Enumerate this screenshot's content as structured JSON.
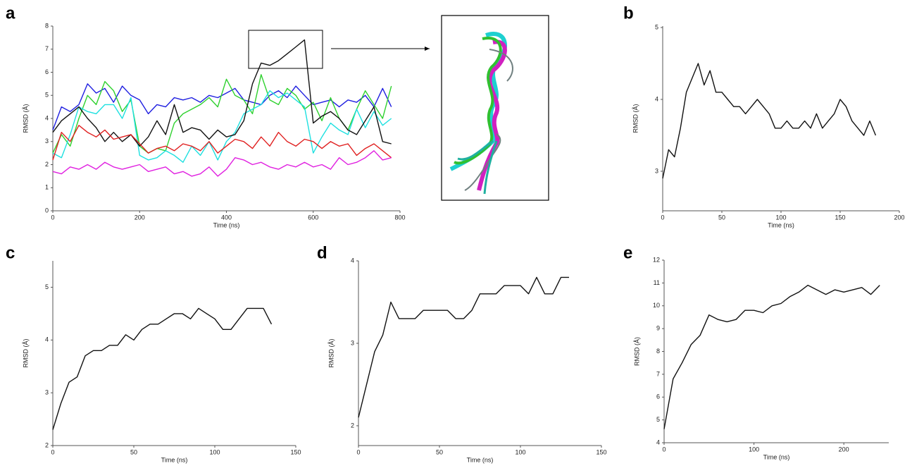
{
  "chart_data": [
    {
      "type": "line",
      "label": "a",
      "x_label": "Time (ns)",
      "y_label": "RMSD (Å)",
      "x": [
        0,
        20,
        40,
        60,
        80,
        100,
        120,
        140,
        160,
        180,
        200,
        220,
        240,
        260,
        280,
        300,
        320,
        340,
        360,
        380,
        400,
        420,
        440,
        460,
        480,
        500,
        520,
        540,
        560,
        580,
        600,
        620,
        640,
        660,
        680,
        700,
        720,
        740,
        760,
        780
      ],
      "series": [
        {
          "color": "#1f1fe0",
          "values": [
            3.5,
            4.5,
            4.3,
            4.6,
            5.5,
            5.1,
            5.3,
            4.7,
            5.4,
            5.0,
            4.8,
            4.2,
            4.6,
            4.5,
            4.9,
            4.8,
            4.9,
            4.7,
            5.0,
            4.9,
            5.1,
            5.3,
            4.8,
            4.7,
            4.6,
            5.0,
            5.2,
            4.9,
            5.4,
            5.0,
            4.6,
            4.7,
            4.8,
            4.5,
            4.8,
            4.7,
            5.0,
            4.5,
            5.3,
            4.5
          ]
        },
        {
          "color": "#2ed12e",
          "values": [
            2.5,
            3.3,
            2.8,
            4.0,
            5.0,
            4.6,
            5.6,
            5.2,
            4.3,
            4.8,
            2.8,
            2.5,
            2.7,
            2.6,
            3.8,
            4.2,
            4.4,
            4.6,
            4.9,
            4.5,
            5.7,
            5.0,
            4.8,
            4.2,
            5.9,
            4.8,
            4.6,
            5.3,
            5.0,
            4.4,
            4.7,
            3.9,
            4.9,
            4.0,
            3.5,
            4.4,
            5.2,
            4.6,
            4.0,
            5.4
          ]
        },
        {
          "color": "#1ee0e0",
          "values": [
            2.5,
            2.3,
            3.3,
            4.5,
            4.3,
            4.2,
            4.6,
            4.6,
            4.0,
            4.9,
            2.4,
            2.2,
            2.3,
            2.6,
            2.4,
            2.1,
            2.8,
            2.4,
            3.0,
            2.2,
            3.0,
            3.4,
            4.2,
            4.4,
            4.6,
            5.2,
            4.9,
            5.1,
            4.8,
            4.5,
            2.5,
            3.2,
            3.8,
            3.5,
            3.3,
            4.4,
            3.6,
            4.3,
            3.7,
            4.0
          ]
        },
        {
          "color": "#111111",
          "values": [
            3.4,
            3.9,
            4.2,
            4.5,
            4.0,
            3.6,
            3.0,
            3.4,
            3.0,
            3.3,
            2.8,
            3.2,
            3.9,
            3.3,
            4.6,
            3.4,
            3.6,
            3.5,
            3.1,
            3.5,
            3.2,
            3.3,
            3.9,
            5.5,
            6.4,
            6.3,
            6.5,
            6.8,
            7.1,
            7.4,
            3.8,
            4.1,
            4.3,
            4.0,
            3.5,
            3.3,
            3.9,
            4.5,
            3.0,
            2.9
          ]
        },
        {
          "color": "#e02020",
          "values": [
            2.2,
            3.4,
            3.0,
            3.7,
            3.4,
            3.2,
            3.5,
            3.1,
            3.2,
            3.3,
            2.9,
            2.5,
            2.7,
            2.8,
            2.6,
            2.9,
            2.8,
            2.6,
            3.0,
            2.5,
            2.8,
            3.1,
            3.0,
            2.7,
            3.2,
            2.8,
            3.4,
            3.0,
            2.8,
            3.1,
            3.0,
            2.7,
            3.0,
            2.8,
            2.9,
            2.4,
            2.7,
            2.9,
            2.6,
            2.3
          ]
        },
        {
          "color": "#e020e0",
          "values": [
            1.7,
            1.6,
            1.9,
            1.8,
            2.0,
            1.8,
            2.1,
            1.9,
            1.8,
            1.9,
            2.0,
            1.7,
            1.8,
            1.9,
            1.6,
            1.7,
            1.5,
            1.6,
            1.9,
            1.5,
            1.8,
            2.3,
            2.2,
            2.0,
            2.1,
            1.9,
            1.8,
            2.0,
            1.9,
            2.1,
            1.9,
            2.0,
            1.8,
            2.3,
            2.0,
            2.1,
            2.3,
            2.6,
            2.2,
            2.3
          ]
        }
      ],
      "xlim": [
        0,
        800
      ],
      "xticks": [
        0,
        200,
        400,
        600,
        800
      ],
      "ylim": [
        0,
        8
      ],
      "yticks": [
        0,
        1,
        2,
        3,
        4,
        5,
        6,
        7,
        8
      ]
    },
    {
      "type": "line",
      "label": "b",
      "x_label": "Time (ns)",
      "y_label": "RMSD (Å)",
      "color": "#111111",
      "x": [
        0,
        5,
        10,
        15,
        20,
        25,
        30,
        35,
        40,
        45,
        50,
        55,
        60,
        65,
        70,
        75,
        80,
        85,
        90,
        95,
        100,
        105,
        110,
        115,
        120,
        125,
        130,
        135,
        140,
        145,
        150,
        155,
        160,
        165,
        170,
        175,
        180
      ],
      "values": [
        2.9,
        3.3,
        3.2,
        3.6,
        4.1,
        4.3,
        4.5,
        4.2,
        4.4,
        4.1,
        4.1,
        4.0,
        3.9,
        3.9,
        3.8,
        3.9,
        4.0,
        3.9,
        3.8,
        3.6,
        3.6,
        3.7,
        3.6,
        3.6,
        3.7,
        3.6,
        3.8,
        3.6,
        3.7,
        3.8,
        4.0,
        3.9,
        3.7,
        3.6,
        3.5,
        3.7,
        3.5
      ],
      "xlim": [
        0,
        200
      ],
      "xticks": [
        0,
        50,
        100,
        150,
        200
      ],
      "ylim": [
        2.45,
        5.02
      ],
      "yticks": [
        3,
        4,
        5
      ]
    },
    {
      "type": "line",
      "label": "c",
      "x_label": "Time (ns)",
      "y_label": "RMSD (Å)",
      "color": "#111111",
      "x": [
        0,
        5,
        10,
        15,
        20,
        25,
        30,
        35,
        40,
        45,
        50,
        55,
        60,
        65,
        70,
        75,
        80,
        85,
        90,
        95,
        100,
        105,
        110,
        115,
        120,
        125,
        130,
        135
      ],
      "values": [
        2.3,
        2.8,
        3.2,
        3.3,
        3.7,
        3.8,
        3.8,
        3.9,
        3.9,
        4.1,
        4.0,
        4.2,
        4.3,
        4.3,
        4.4,
        4.5,
        4.5,
        4.4,
        4.6,
        4.5,
        4.4,
        4.2,
        4.2,
        4.4,
        4.6,
        4.6,
        4.6,
        4.3
      ],
      "xlim": [
        0,
        150
      ],
      "xticks": [
        0,
        50,
        100,
        150
      ],
      "ylim": [
        2,
        5.5
      ],
      "yticks": [
        2,
        3,
        4,
        5
      ]
    },
    {
      "type": "line",
      "label": "d",
      "x_label": "Time (ns)",
      "y_label": "RMSD (Å)",
      "color": "#111111",
      "x": [
        0,
        5,
        10,
        15,
        20,
        25,
        30,
        35,
        40,
        45,
        50,
        55,
        60,
        65,
        70,
        75,
        80,
        85,
        90,
        95,
        100,
        105,
        110,
        115,
        120,
        125,
        130
      ],
      "values": [
        2.1,
        2.5,
        2.9,
        3.1,
        3.5,
        3.3,
        3.3,
        3.3,
        3.4,
        3.4,
        3.4,
        3.4,
        3.3,
        3.3,
        3.4,
        3.6,
        3.6,
        3.6,
        3.7,
        3.7,
        3.7,
        3.6,
        3.8,
        3.6,
        3.6,
        3.8,
        3.8
      ],
      "xlim": [
        0,
        150
      ],
      "xticks": [
        0,
        50,
        100,
        150
      ],
      "ylim": [
        1.76,
        4
      ],
      "yticks": [
        2,
        3,
        4
      ]
    },
    {
      "type": "line",
      "label": "e",
      "x_label": "Time (ns)",
      "y_label": "RMSD (Å)",
      "color": "#111111",
      "x": [
        0,
        10,
        20,
        30,
        40,
        50,
        60,
        70,
        80,
        90,
        100,
        110,
        120,
        130,
        140,
        150,
        160,
        170,
        180,
        190,
        200,
        210,
        220,
        230,
        240
      ],
      "values": [
        4.6,
        6.8,
        7.5,
        8.3,
        8.7,
        9.6,
        9.4,
        9.3,
        9.4,
        9.8,
        9.8,
        9.7,
        10.0,
        10.1,
        10.4,
        10.6,
        10.9,
        10.7,
        10.5,
        10.7,
        10.6,
        10.7,
        10.8,
        10.5,
        10.9
      ],
      "xlim": [
        0,
        250
      ],
      "xticks": [
        0,
        100,
        200
      ],
      "ylim": [
        4,
        12
      ],
      "yticks": [
        4,
        5,
        6,
        7,
        8,
        9,
        10,
        11,
        12
      ]
    }
  ]
}
